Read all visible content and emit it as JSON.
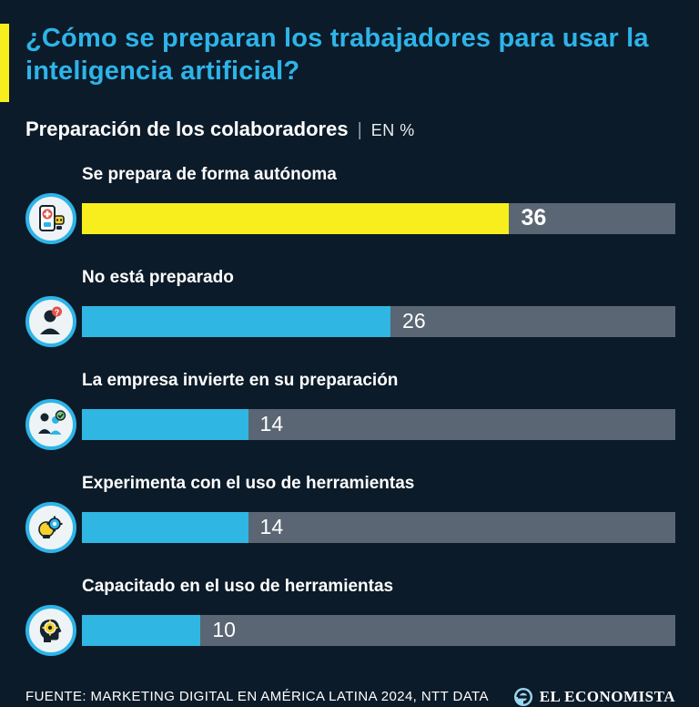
{
  "title": "¿Cómo se preparan los trabajadores para usar la inteligencia artificial?",
  "subtitle": "Preparación de los colaboradores",
  "subtitle_separator": "|",
  "subtitle_unit": "EN %",
  "colors": {
    "background": "#0c1b29",
    "title_cyan": "#2db4e9",
    "accent_yellow": "#f8ee1e",
    "bar_cyan": "#2fb6e2",
    "track_gray": "#5a6673",
    "text_white": "#ffffff"
  },
  "chart_data": {
    "type": "bar",
    "orientation": "horizontal",
    "title": "Preparación de los colaboradores (EN %)",
    "categories": [
      "Se prepara de forma autónoma",
      "No está preparado",
      "La empresa invierte en su preparación",
      "Experimenta con el uso de herramientas",
      "Capacitado en el uso de herramientas"
    ],
    "values": [
      36,
      26,
      14,
      14,
      10
    ],
    "max": 50,
    "unit": "%",
    "bar_colors": [
      "#f8ee1e",
      "#2fb6e2",
      "#2fb6e2",
      "#2fb6e2",
      "#2fb6e2"
    ],
    "icons": [
      "phone-robot-icon",
      "confused-person-icon",
      "team-training-icon",
      "tools-gear-icon",
      "head-gear-icon"
    ],
    "legend": "none",
    "grid": false
  },
  "footer": {
    "source": "FUENTE: MARKETING DIGITAL EN AMÉRICA LATINA 2024, NTT DATA",
    "brand": "EL ECONOMISTA"
  }
}
